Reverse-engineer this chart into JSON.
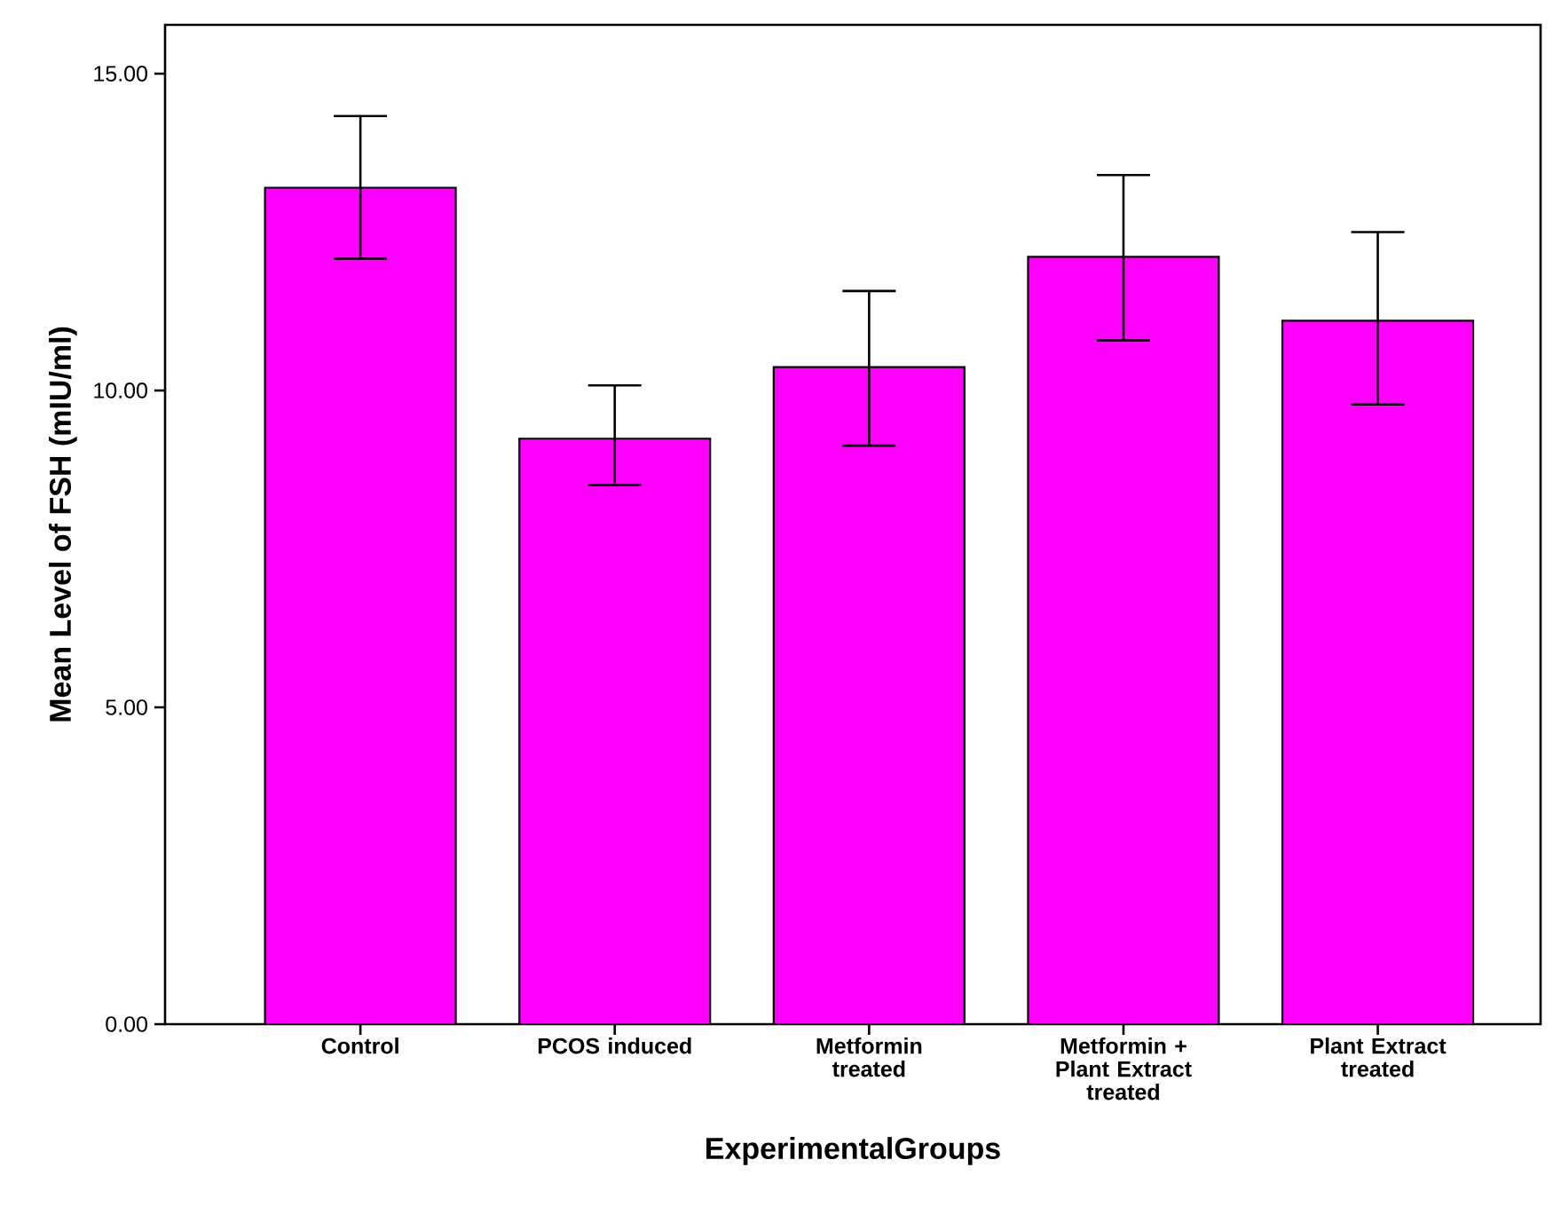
{
  "chart_data": {
    "type": "bar",
    "xlabel": "ExperimentalGroups",
    "ylabel": "Mean Level of FSH (mIU/ml)",
    "categories": [
      "Control",
      "PCOS induced",
      "Metformin treated",
      "Metformin + Plant Extract treated",
      "Plant Extract treated"
    ],
    "values": [
      13.2,
      9.24,
      10.37,
      12.11,
      11.1
    ],
    "errors": [
      [
        12.08,
        14.33
      ],
      [
        8.51,
        10.08
      ],
      [
        9.13,
        11.57
      ],
      [
        10.79,
        13.4
      ],
      [
        9.78,
        12.5
      ]
    ],
    "color": "#ff00ff",
    "ylim": [
      0,
      15.77
    ],
    "yticks": [
      {
        "value": 0,
        "label": "0.00"
      },
      {
        "value": 5,
        "label": "5.00"
      },
      {
        "value": 10,
        "label": "10.00"
      },
      {
        "value": 15,
        "label": "15.00"
      }
    ],
    "grid": false
  }
}
